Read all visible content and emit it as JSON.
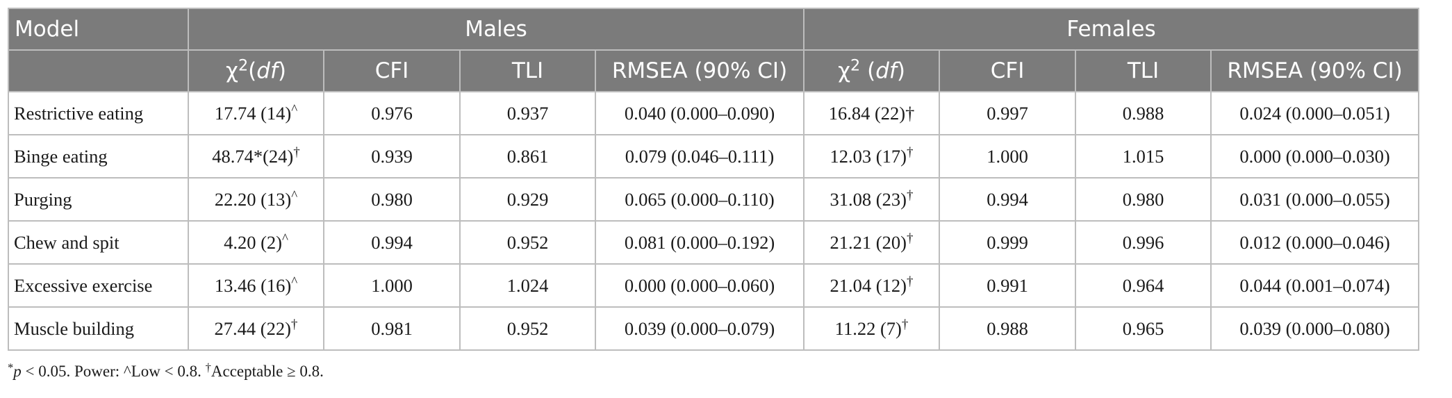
{
  "header": {
    "model_label": "Model",
    "group_males": "Males",
    "group_females": "Females",
    "chi_symbol": "χ",
    "chi_sup": "2",
    "df_open": "(",
    "df_italic": "df",
    "df_close": ")",
    "cfi": "CFI",
    "tli": "TLI",
    "rmsea": "RMSEA (90% CI)"
  },
  "rows": [
    {
      "model": "Restrictive eating",
      "m_chi": "17.74 (14)",
      "m_mark": "^",
      "m_cfi": "0.976",
      "m_tli": "0.937",
      "m_rmsea": "0.040 (0.000–0.090)",
      "f_chi": "16.84 (22)",
      "f_mark": "†",
      "f_cfi": "0.997",
      "f_tli": "0.988",
      "f_rmsea": "0.024 (0.000–0.051)"
    },
    {
      "model": "Binge eating",
      "m_chi": "48.74*(24)",
      "m_mark": "†",
      "m_cfi": "0.939",
      "m_tli": "0.861",
      "m_rmsea": "0.079 (0.046–0.111)",
      "f_chi": "12.03 (17)",
      "f_mark": "†",
      "f_cfi": "1.000",
      "f_tli": "1.015",
      "f_rmsea": "0.000 (0.000–0.030)"
    },
    {
      "model": "Purging",
      "m_chi": "22.20 (13)",
      "m_mark": "^",
      "m_cfi": "0.980",
      "m_tli": "0.929",
      "m_rmsea": "0.065 (0.000–0.110)",
      "f_chi": "31.08 (23)",
      "f_mark": "†",
      "f_cfi": "0.994",
      "f_tli": "0.980",
      "f_rmsea": "0.031 (0.000–0.055)"
    },
    {
      "model": "Chew and spit",
      "m_chi": "4.20 (2)",
      "m_mark": "^",
      "m_cfi": "0.994",
      "m_tli": "0.952",
      "m_rmsea": "0.081 (0.000–0.192)",
      "f_chi": "21.21 (20)",
      "f_mark": "†",
      "f_cfi": "0.999",
      "f_tli": "0.996",
      "f_rmsea": "0.012 (0.000–0.046)"
    },
    {
      "model": "Excessive exercise",
      "m_chi": "13.46 (16)",
      "m_mark": "^",
      "m_cfi": "1.000",
      "m_tli": "1.024",
      "m_rmsea": "0.000 (0.000–0.060)",
      "f_chi": "21.04 (12)",
      "f_mark": "†",
      "f_cfi": "0.991",
      "f_tli": "0.964",
      "f_rmsea": "0.044 (0.001–0.074)"
    },
    {
      "model": "Muscle building",
      "m_chi": "27.44 (22)",
      "m_mark": "†",
      "m_cfi": "0.981",
      "m_tli": "0.952",
      "m_rmsea": "0.039 (0.000–0.079)",
      "f_chi": "11.22 (7)",
      "f_mark": "†",
      "f_cfi": "0.988",
      "f_tli": "0.965",
      "f_rmsea": "0.039 (0.000–0.080)"
    }
  ],
  "note": {
    "star_sup": "*",
    "p_italic": "p",
    "p_text": " < 0.05. Power: ^Low < 0.8. ",
    "dagger_sup": "†",
    "accept_text": "Acceptable ≥ 0.8."
  }
}
